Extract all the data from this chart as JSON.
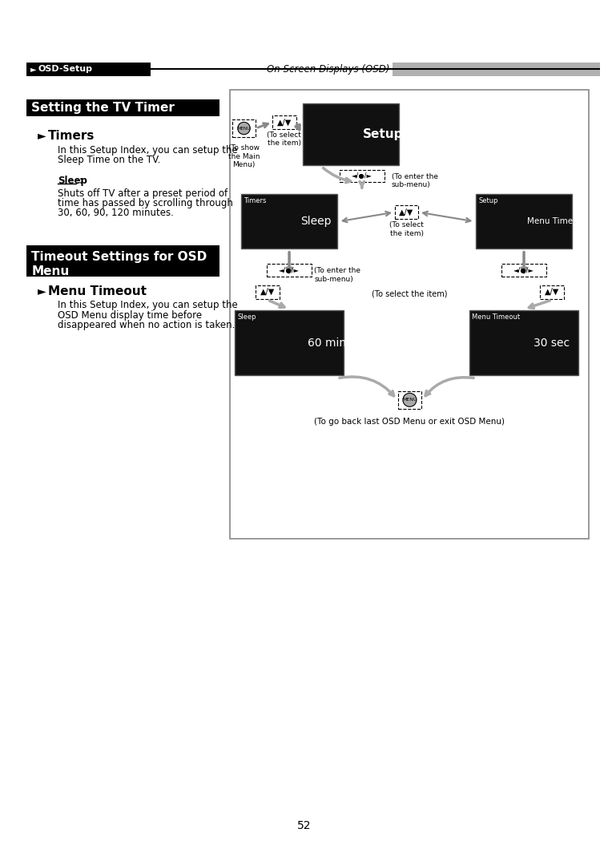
{
  "page_bg": "#ffffff",
  "header_text_left": "OSD-Setup",
  "header_text_right": "On Screen Displays (OSD)",
  "section1_title": "Setting the TV Timer",
  "section1_arrow_char": "►",
  "section1_subtitle": "Timers",
  "section1_body1": "In this Setup Index, you can setup the\nSleep Time on the TV.",
  "section1_sleep_label": "Sleep",
  "section1_sleep_colon": " :",
  "section1_body2": "Shuts off TV after a preset period of\ntime has passed by scrolling through\n30, 60, 90, 120 minutes.",
  "section2_title_line1": "Timeout Settings for OSD",
  "section2_title_line2": "Menu",
  "section2_arrow_char": "►",
  "section2_subtitle": "Menu Timeout",
  "section2_body": "In this Setup Index, you can setup the\nOSD Menu display time before\ndisappeared when no action is taken.",
  "caption_to_show": "(To show\nthe Main\nMenu)",
  "caption_to_select1": "(To select\nthe item)",
  "caption_to_enter1": "(To enter the\nsub-menu)",
  "caption_to_select2": "(To select\nthe item)",
  "caption_to_enter2": "(To enter the\nsub-menu)",
  "caption_to_select3": "(To select the item)",
  "caption_bottom": "(To go back last OSD Menu or exit OSD Menu)",
  "label_setup": "Setup",
  "label_timers": "Timers",
  "label_sleep_menu": "Sleep",
  "label_setup2": "Setup",
  "label_menu_timeout": "Menu Timeout",
  "label_sleep_final": "Sleep",
  "label_60min": "60 min",
  "label_menu_timeout_final": "Menu Timeout",
  "label_30sec": "30 sec",
  "page_number": "52"
}
